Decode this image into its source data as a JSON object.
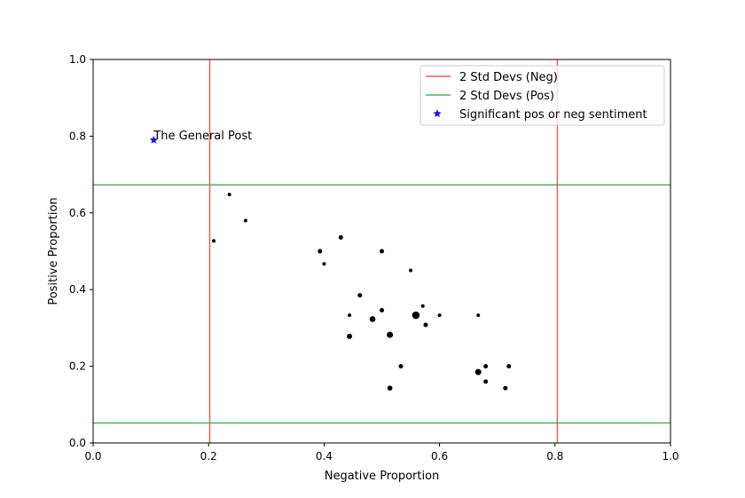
{
  "chart_data": {
    "type": "scatter",
    "xlabel": "Negative Proportion",
    "ylabel": "Positive Proportion",
    "xlim": [
      0.0,
      1.0
    ],
    "ylim": [
      0.0,
      1.0
    ],
    "x_ticks": [
      0.0,
      0.2,
      0.4,
      0.6,
      0.8,
      1.0
    ],
    "y_ticks": [
      0.0,
      0.2,
      0.4,
      0.6,
      0.8,
      1.0
    ],
    "x_tick_labels": [
      "0.0",
      "0.2",
      "0.4",
      "0.6",
      "0.8",
      "1.0"
    ],
    "y_tick_labels": [
      "0.0",
      "0.2",
      "0.4",
      "0.6",
      "0.8",
      "1.0"
    ],
    "grid": false,
    "legend_position": "top-right",
    "vlines": {
      "name": "2 Std Devs (Neg)",
      "color": "#e8615e",
      "x": [
        0.202,
        0.804
      ]
    },
    "hlines": {
      "name": "2 Std Devs (Pos)",
      "color": "#5aad5a",
      "y": [
        0.673,
        0.052
      ]
    },
    "significant": {
      "name": "Significant pos or neg sentiment",
      "color": "#1414e6",
      "marker": "star",
      "points": [
        {
          "x": 0.105,
          "y": 0.79,
          "label": "The General Post"
        }
      ]
    },
    "points": [
      {
        "x": 0.236,
        "y": 0.648,
        "size": 2
      },
      {
        "x": 0.264,
        "y": 0.58,
        "size": 2
      },
      {
        "x": 0.209,
        "y": 0.527,
        "size": 2
      },
      {
        "x": 0.429,
        "y": 0.536,
        "size": 2.5
      },
      {
        "x": 0.393,
        "y": 0.5,
        "size": 2.5
      },
      {
        "x": 0.5,
        "y": 0.5,
        "size": 2.5
      },
      {
        "x": 0.4,
        "y": 0.467,
        "size": 2
      },
      {
        "x": 0.55,
        "y": 0.45,
        "size": 2
      },
      {
        "x": 0.462,
        "y": 0.385,
        "size": 2.5
      },
      {
        "x": 0.5,
        "y": 0.346,
        "size": 2.5
      },
      {
        "x": 0.444,
        "y": 0.333,
        "size": 2
      },
      {
        "x": 0.571,
        "y": 0.357,
        "size": 2
      },
      {
        "x": 0.559,
        "y": 0.333,
        "size": 4.2
      },
      {
        "x": 0.6,
        "y": 0.333,
        "size": 2
      },
      {
        "x": 0.667,
        "y": 0.333,
        "size": 2
      },
      {
        "x": 0.484,
        "y": 0.323,
        "size": 3.3
      },
      {
        "x": 0.576,
        "y": 0.308,
        "size": 2.5
      },
      {
        "x": 0.444,
        "y": 0.278,
        "size": 3
      },
      {
        "x": 0.514,
        "y": 0.282,
        "size": 3.5
      },
      {
        "x": 0.533,
        "y": 0.2,
        "size": 2.5
      },
      {
        "x": 0.68,
        "y": 0.2,
        "size": 2.5
      },
      {
        "x": 0.72,
        "y": 0.2,
        "size": 2.5
      },
      {
        "x": 0.667,
        "y": 0.185,
        "size": 3.5
      },
      {
        "x": 0.68,
        "y": 0.16,
        "size": 2.5
      },
      {
        "x": 0.514,
        "y": 0.143,
        "size": 2.8
      },
      {
        "x": 0.714,
        "y": 0.143,
        "size": 2.5
      }
    ]
  }
}
